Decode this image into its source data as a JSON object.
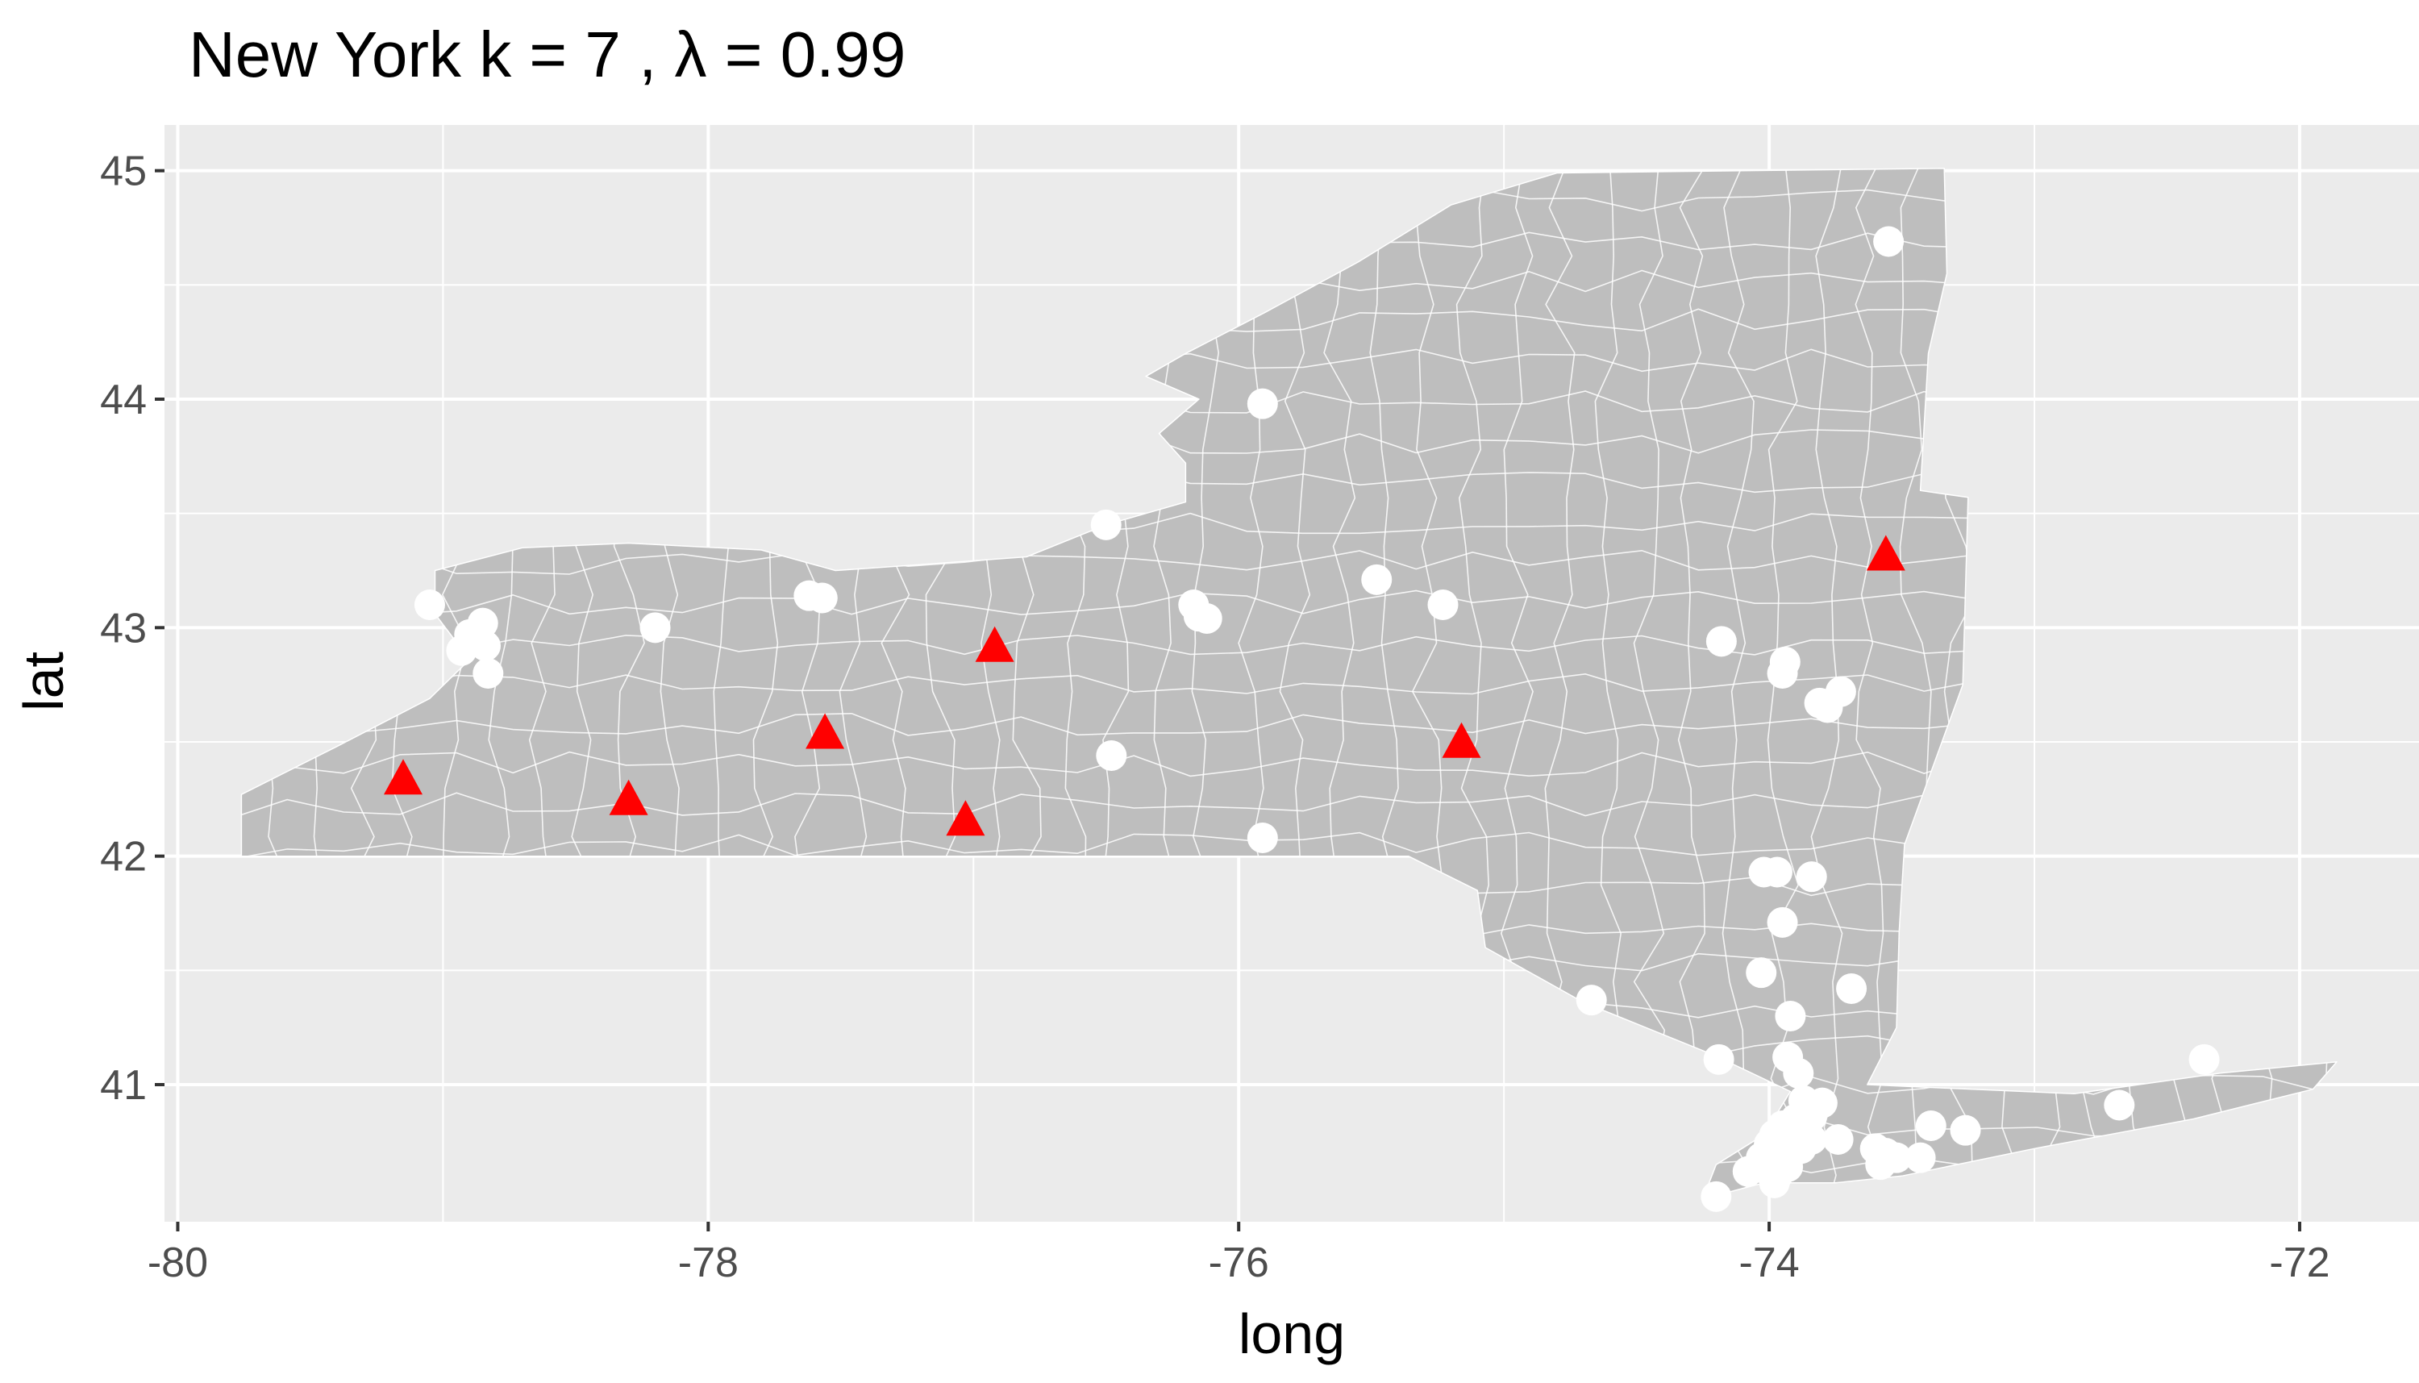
{
  "chart_data": {
    "type": "scatter",
    "title": "New York  k =  7 ,  λ  =  0.99",
    "xlabel": "long",
    "ylabel": "lat",
    "xlim": [
      -80.05,
      -71.55
    ],
    "ylim": [
      40.4,
      45.2
    ],
    "x_ticks": [
      -80,
      -78,
      -76,
      -74,
      -72
    ],
    "y_ticks": [
      41,
      42,
      43,
      44,
      45
    ],
    "x_tick_labels": [
      "-80",
      "-78",
      "-76",
      "-74",
      "-72"
    ],
    "y_tick_labels": [
      "41",
      "42",
      "43",
      "44",
      "45"
    ],
    "grid": true,
    "background": "#ebebeb",
    "state_fill": "#bebebe",
    "state_outline": [
      [
        -79.76,
        42.0
      ],
      [
        -79.76,
        42.27
      ],
      [
        -79.4,
        42.48
      ],
      [
        -79.05,
        42.69
      ],
      [
        -78.9,
        42.86
      ],
      [
        -79.03,
        43.06
      ],
      [
        -79.03,
        43.25
      ],
      [
        -78.7,
        43.35
      ],
      [
        -78.3,
        43.37
      ],
      [
        -77.8,
        43.34
      ],
      [
        -77.52,
        43.25
      ],
      [
        -77.15,
        43.28
      ],
      [
        -76.8,
        43.31
      ],
      [
        -76.5,
        43.45
      ],
      [
        -76.2,
        43.55
      ],
      [
        -76.2,
        43.72
      ],
      [
        -76.3,
        43.85
      ],
      [
        -76.15,
        44.0
      ],
      [
        -76.35,
        44.1
      ],
      [
        -76.2,
        44.2
      ],
      [
        -75.9,
        44.38
      ],
      [
        -75.55,
        44.6
      ],
      [
        -75.2,
        44.85
      ],
      [
        -74.8,
        44.99
      ],
      [
        -73.34,
        45.01
      ],
      [
        -73.33,
        44.55
      ],
      [
        -73.4,
        44.2
      ],
      [
        -73.43,
        43.6
      ],
      [
        -73.25,
        43.57
      ],
      [
        -73.27,
        42.75
      ],
      [
        -73.49,
        42.05
      ],
      [
        -73.51,
        41.67
      ],
      [
        -73.52,
        41.25
      ],
      [
        -73.63,
        41.0
      ],
      [
        -72.85,
        40.96
      ],
      [
        -72.3,
        41.05
      ],
      [
        -71.86,
        41.1
      ],
      [
        -71.95,
        40.98
      ],
      [
        -72.4,
        40.85
      ],
      [
        -73.0,
        40.72
      ],
      [
        -73.5,
        40.6
      ],
      [
        -73.75,
        40.57
      ],
      [
        -74.02,
        40.57
      ],
      [
        -74.25,
        40.5
      ],
      [
        -74.2,
        40.65
      ],
      [
        -74.02,
        40.78
      ],
      [
        -73.92,
        40.97
      ],
      [
        -74.21,
        41.13
      ],
      [
        -74.7,
        41.36
      ],
      [
        -75.07,
        41.6
      ],
      [
        -75.1,
        41.85
      ],
      [
        -75.36,
        42.0
      ],
      [
        -79.76,
        42.0
      ]
    ],
    "series": [
      {
        "marker": "circle",
        "color": "#ffffff",
        "points": [
          [
            -73.55,
            44.69
          ],
          [
            -75.91,
            43.98
          ],
          [
            -76.5,
            43.45
          ],
          [
            -75.48,
            43.21
          ],
          [
            -75.23,
            43.1
          ],
          [
            -76.15,
            43.05
          ],
          [
            -76.12,
            43.04
          ],
          [
            -76.17,
            43.1
          ],
          [
            -77.57,
            43.13
          ],
          [
            -77.62,
            43.14
          ],
          [
            -79.05,
            43.1
          ],
          [
            -78.85,
            43.02
          ],
          [
            -78.9,
            42.97
          ],
          [
            -78.84,
            42.92
          ],
          [
            -78.93,
            42.9
          ],
          [
            -78.83,
            42.8
          ],
          [
            -78.2,
            43.0
          ],
          [
            -74.18,
            42.94
          ],
          [
            -73.94,
            42.85
          ],
          [
            -73.95,
            42.8
          ],
          [
            -73.73,
            42.72
          ],
          [
            -73.81,
            42.67
          ],
          [
            -73.78,
            42.65
          ],
          [
            -76.48,
            42.44
          ],
          [
            -75.91,
            42.08
          ],
          [
            -74.02,
            41.93
          ],
          [
            -73.97,
            41.93
          ],
          [
            -73.84,
            41.91
          ],
          [
            -73.95,
            41.71
          ],
          [
            -74.03,
            41.49
          ],
          [
            -73.69,
            41.42
          ],
          [
            -73.92,
            41.3
          ],
          [
            -74.67,
            41.37
          ],
          [
            -73.93,
            41.12
          ],
          [
            -73.89,
            41.05
          ],
          [
            -74.19,
            41.11
          ],
          [
            -73.87,
            40.93
          ],
          [
            -73.8,
            40.92
          ],
          [
            -73.9,
            40.85
          ],
          [
            -73.84,
            40.86
          ],
          [
            -73.95,
            40.82
          ],
          [
            -73.98,
            40.78
          ],
          [
            -74.0,
            40.74
          ],
          [
            -73.92,
            40.77
          ],
          [
            -73.94,
            40.7
          ],
          [
            -74.03,
            40.68
          ],
          [
            -73.88,
            40.72
          ],
          [
            -73.84,
            40.76
          ],
          [
            -73.93,
            40.64
          ],
          [
            -73.97,
            40.6
          ],
          [
            -74.0,
            40.62
          ],
          [
            -73.74,
            40.76
          ],
          [
            -73.6,
            40.72
          ],
          [
            -73.56,
            40.7
          ],
          [
            -73.58,
            40.65
          ],
          [
            -73.52,
            40.68
          ],
          [
            -73.43,
            40.68
          ],
          [
            -73.39,
            40.82
          ],
          [
            -73.26,
            40.8
          ],
          [
            -72.68,
            40.91
          ],
          [
            -72.36,
            41.11
          ],
          [
            -74.08,
            40.62
          ],
          [
            -74.2,
            40.51
          ],
          [
            -73.98,
            40.57
          ]
        ]
      },
      {
        "marker": "triangle",
        "color": "#ff0000",
        "points": [
          [
            -73.56,
            43.31
          ],
          [
            -76.92,
            42.91
          ],
          [
            -75.16,
            42.49
          ],
          [
            -77.56,
            42.53
          ],
          [
            -78.3,
            42.24
          ],
          [
            -79.15,
            42.33
          ],
          [
            -77.03,
            42.15
          ]
        ]
      }
    ]
  }
}
